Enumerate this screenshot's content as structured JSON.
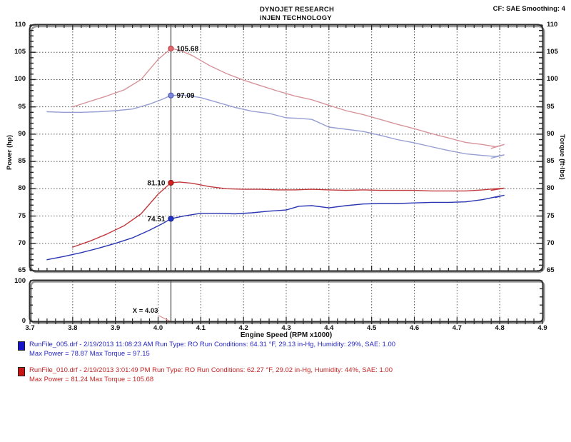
{
  "header": {
    "title1": "DYNOJET RESEARCH",
    "title2": "iNJEN TECHNOLOGY",
    "corner": "CF: SAE  Smoothing: 4"
  },
  "legend": [
    {
      "swatch": "#1515c8",
      "text_left": "RunFile_005.drf Max Power = 78.87",
      "text_right": "Max Torque = 97.15"
    },
    {
      "swatch": "#c81515",
      "text_left": "RunFile_010.drf Max Power = 81.24",
      "text_right": "Max Torque = 105.68"
    }
  ],
  "cursor": {
    "x": 4.03,
    "label": "X = 4.03"
  },
  "chart_data": {
    "type": "line",
    "xlabel": "Engine Speed (RPM x1000)",
    "ylabel_left": "Power (hp)",
    "ylabel_right": "Torque (ft-lbs)",
    "xlim": [
      3.7,
      4.9
    ],
    "ylim": [
      65,
      110
    ],
    "x_ticks": [
      3.7,
      3.8,
      3.9,
      4.0,
      4.1,
      4.2,
      4.3,
      4.4,
      4.5,
      4.6,
      4.7,
      4.8,
      4.9
    ],
    "y_ticks": [
      65,
      70,
      75,
      80,
      85,
      90,
      95,
      100,
      105,
      110
    ],
    "grid": "dotted",
    "colors": {
      "grid": "#555555",
      "frame": "#2d2d2d",
      "frame_shadow": "#9a9a9a",
      "cursor": "#606060",
      "leader": "#e08888"
    },
    "mini_panel": {
      "ylim": [
        0,
        100
      ],
      "y_tick_labels": [
        "100",
        "0"
      ]
    },
    "series": [
      {
        "name": "RunFile_005 Power (hp)",
        "color": "#2a35b2",
        "points": [
          [
            3.74,
            67.0
          ],
          [
            3.78,
            67.6
          ],
          [
            3.82,
            68.3
          ],
          [
            3.86,
            69.1
          ],
          [
            3.9,
            70.0
          ],
          [
            3.94,
            71.0
          ],
          [
            3.98,
            72.4
          ],
          [
            4.01,
            73.6
          ],
          [
            4.03,
            74.51
          ],
          [
            4.06,
            75.0
          ],
          [
            4.1,
            75.5
          ],
          [
            4.14,
            75.5
          ],
          [
            4.18,
            75.4
          ],
          [
            4.22,
            75.6
          ],
          [
            4.26,
            75.9
          ],
          [
            4.3,
            76.1
          ],
          [
            4.33,
            76.8
          ],
          [
            4.36,
            76.9
          ],
          [
            4.4,
            76.5
          ],
          [
            4.44,
            76.9
          ],
          [
            4.48,
            77.2
          ],
          [
            4.52,
            77.3
          ],
          [
            4.56,
            77.3
          ],
          [
            4.6,
            77.4
          ],
          [
            4.64,
            77.5
          ],
          [
            4.68,
            77.5
          ],
          [
            4.72,
            77.6
          ],
          [
            4.76,
            78.0
          ],
          [
            4.79,
            78.5
          ],
          [
            4.81,
            78.8
          ],
          [
            4.79,
            78.4
          ]
        ]
      },
      {
        "name": "RunFile_010 Power (hp)",
        "color": "#c13a3f",
        "points": [
          [
            3.8,
            69.3
          ],
          [
            3.84,
            70.4
          ],
          [
            3.88,
            71.7
          ],
          [
            3.92,
            73.2
          ],
          [
            3.96,
            75.4
          ],
          [
            4.0,
            79.0
          ],
          [
            4.03,
            81.1
          ],
          [
            4.05,
            81.24
          ],
          [
            4.08,
            81.0
          ],
          [
            4.12,
            80.4
          ],
          [
            4.16,
            80.0
          ],
          [
            4.2,
            79.9
          ],
          [
            4.24,
            79.9
          ],
          [
            4.28,
            79.8
          ],
          [
            4.32,
            79.8
          ],
          [
            4.36,
            79.9
          ],
          [
            4.4,
            79.8
          ],
          [
            4.44,
            79.7
          ],
          [
            4.48,
            79.8
          ],
          [
            4.52,
            79.7
          ],
          [
            4.56,
            79.7
          ],
          [
            4.6,
            79.7
          ],
          [
            4.64,
            79.6
          ],
          [
            4.68,
            79.6
          ],
          [
            4.72,
            79.6
          ],
          [
            4.76,
            79.8
          ],
          [
            4.79,
            80.0
          ],
          [
            4.81,
            80.1
          ],
          [
            4.78,
            79.7
          ]
        ]
      },
      {
        "name": "RunFile_005 Torque (ft-lbs)",
        "color": "#969ed2",
        "points": [
          [
            3.74,
            94.1
          ],
          [
            3.78,
            94.0
          ],
          [
            3.82,
            94.0
          ],
          [
            3.86,
            94.1
          ],
          [
            3.9,
            94.3
          ],
          [
            3.94,
            94.6
          ],
          [
            3.98,
            95.5
          ],
          [
            4.01,
            96.4
          ],
          [
            4.03,
            97.09
          ],
          [
            4.06,
            97.15
          ],
          [
            4.1,
            96.7
          ],
          [
            4.14,
            95.8
          ],
          [
            4.18,
            94.9
          ],
          [
            4.22,
            94.2
          ],
          [
            4.26,
            93.8
          ],
          [
            4.3,
            93.0
          ],
          [
            4.33,
            92.9
          ],
          [
            4.36,
            92.7
          ],
          [
            4.4,
            91.3
          ],
          [
            4.44,
            90.9
          ],
          [
            4.48,
            90.5
          ],
          [
            4.52,
            89.8
          ],
          [
            4.56,
            89.0
          ],
          [
            4.6,
            88.4
          ],
          [
            4.64,
            87.7
          ],
          [
            4.68,
            87.0
          ],
          [
            4.72,
            86.4
          ],
          [
            4.76,
            86.1
          ],
          [
            4.79,
            85.9
          ],
          [
            4.81,
            86.2
          ],
          [
            4.78,
            85.6
          ]
        ]
      },
      {
        "name": "RunFile_010 Torque (ft-lbs)",
        "color": "#d6949a",
        "points": [
          [
            3.8,
            95.0
          ],
          [
            3.84,
            96.0
          ],
          [
            3.88,
            97.0
          ],
          [
            3.92,
            98.1
          ],
          [
            3.96,
            100.0
          ],
          [
            4.0,
            103.7
          ],
          [
            4.03,
            105.68
          ],
          [
            4.05,
            105.4
          ],
          [
            4.08,
            104.4
          ],
          [
            4.12,
            102.6
          ],
          [
            4.16,
            101.1
          ],
          [
            4.2,
            99.9
          ],
          [
            4.24,
            98.9
          ],
          [
            4.28,
            97.9
          ],
          [
            4.32,
            97.0
          ],
          [
            4.36,
            96.3
          ],
          [
            4.4,
            95.3
          ],
          [
            4.44,
            94.3
          ],
          [
            4.48,
            93.6
          ],
          [
            4.52,
            92.7
          ],
          [
            4.56,
            91.8
          ],
          [
            4.6,
            91.0
          ],
          [
            4.64,
            90.1
          ],
          [
            4.68,
            89.3
          ],
          [
            4.72,
            88.5
          ],
          [
            4.76,
            88.1
          ],
          [
            4.79,
            87.7
          ],
          [
            4.81,
            88.1
          ],
          [
            4.78,
            87.4
          ]
        ]
      }
    ],
    "annotations": [
      {
        "x": 4.03,
        "y": 105.68,
        "label": "105.68",
        "side": "right",
        "fill": "#e0676e",
        "stroke": "#b03a40"
      },
      {
        "x": 4.03,
        "y": 97.09,
        "label": "97.09",
        "side": "right",
        "fill": "#7b86d8",
        "stroke": "#4553b8"
      },
      {
        "x": 4.03,
        "y": 81.1,
        "label": "81.10",
        "side": "left",
        "fill": "#d42020",
        "stroke": "#8f1212"
      },
      {
        "x": 4.03,
        "y": 74.51,
        "label": "74.51",
        "side": "left",
        "fill": "#2233cc",
        "stroke": "#101a80"
      }
    ]
  },
  "runs": [
    {
      "swatch": "#1515c8",
      "text_color": "#2626c0",
      "line1": "RunFile_005.drf - 2/19/2013 11:08:23 AM  Run Type: RO  Run Conditions: 64.31 °F, 29.13 in-Hg,  Humidity:  29%, SAE: 1.00",
      "line2": "Max Power = 78.87   Max Torque = 97.15"
    },
    {
      "swatch": "#c81515",
      "text_color": "#c02626",
      "line1": "RunFile_010.drf - 2/19/2013 3:01:49 PM  Run Type: RO  Run Conditions: 62.27 °F, 29.02 in-Hg,  Humidity:  44%, SAE: 1.00",
      "line2": "Max Power = 81.24   Max Torque = 105.68"
    }
  ]
}
